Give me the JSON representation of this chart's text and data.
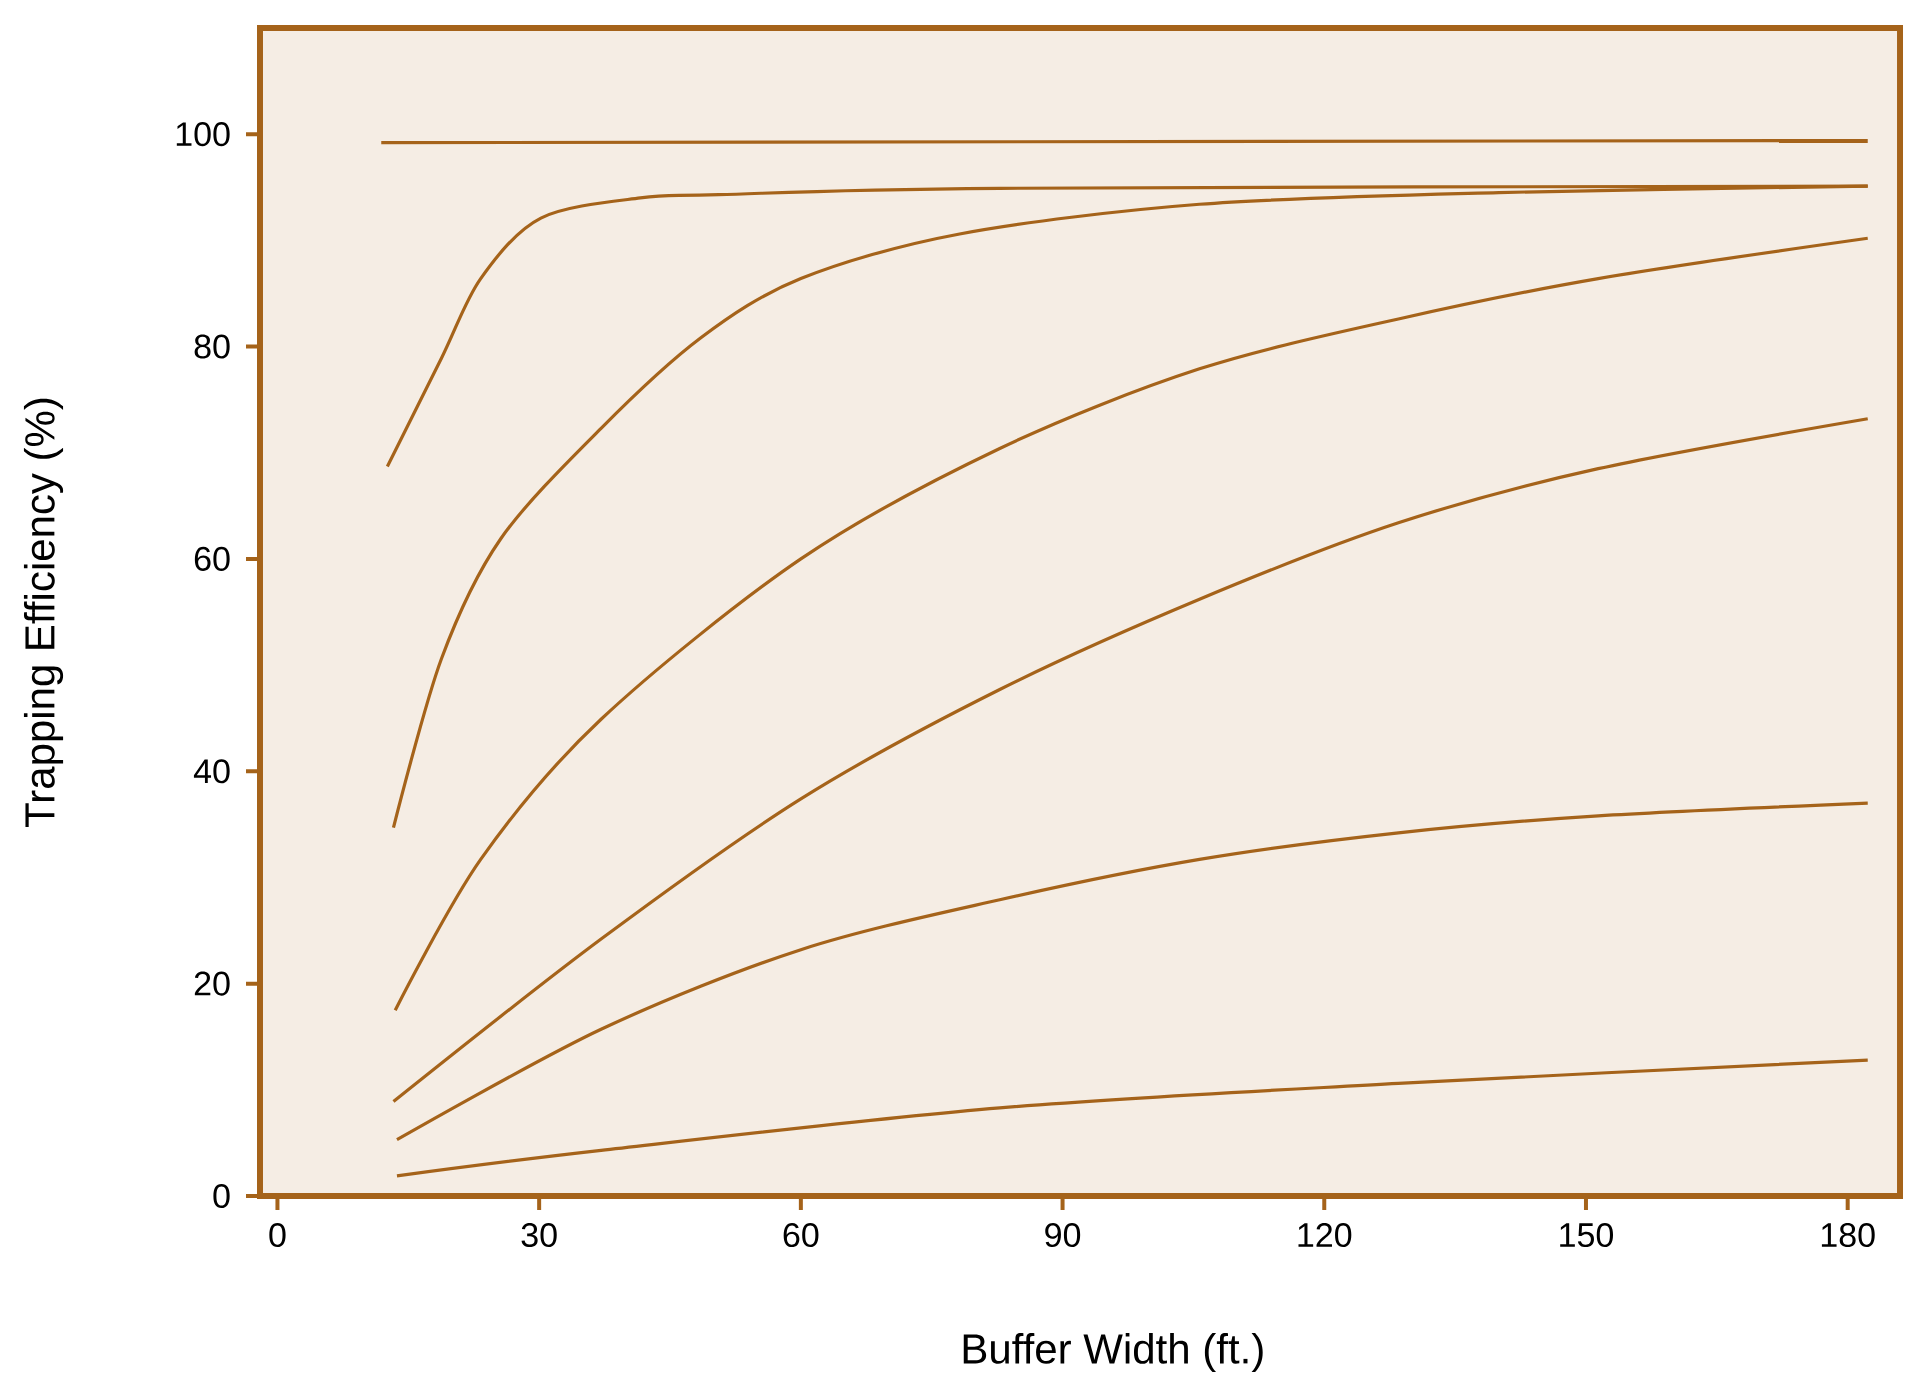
{
  "chart_data": {
    "type": "line",
    "xlabel": "Buffer Width (ft.)",
    "ylabel": "Trapping Efficiency (%)",
    "xlim": [
      -2,
      186
    ],
    "ylim": [
      0,
      110
    ],
    "xticks": [
      0,
      30,
      60,
      90,
      120,
      150,
      180
    ],
    "yticks": [
      0,
      20,
      40,
      60,
      80,
      100
    ],
    "grid": false,
    "marker": "none",
    "line_style": "solid",
    "series": [
      {
        "color": "#a5631a",
        "x": [
          11.9,
          182.3
        ],
        "values": [
          99.2,
          99.4
        ]
      },
      {
        "color": "#a5631a",
        "x": [
          12.6,
          18.8,
          23.3,
          30.2,
          41.6,
          50.6,
          82.8,
          182.3
        ],
        "values": [
          68.7,
          78.9,
          86.4,
          92.1,
          94.0,
          94.3,
          94.9,
          95.1
        ]
      },
      {
        "color": "#a5631a",
        "x": [
          13.3,
          18.8,
          25.6,
          37.1,
          48.5,
          60.0,
          78.2,
          105.7,
          140.0,
          182.3
        ],
        "values": [
          34.7,
          50.6,
          61.9,
          72.3,
          80.8,
          86.4,
          90.6,
          93.4,
          94.5,
          95.1
        ]
      },
      {
        "color": "#a5631a",
        "x": [
          13.5,
          23.3,
          37.1,
          60.0,
          82.8,
          105.7,
          128.5,
          151.4,
          182.3
        ],
        "values": [
          17.5,
          31.7,
          44.9,
          60.0,
          70.4,
          77.9,
          82.6,
          86.4,
          90.2
        ]
      },
      {
        "color": "#a5631a",
        "x": [
          13.3,
          37.1,
          60.0,
          82.8,
          105.7,
          128.5,
          151.4,
          182.3
        ],
        "values": [
          8.9,
          24.2,
          37.4,
          47.7,
          56.2,
          63.4,
          68.5,
          73.2
        ]
      },
      {
        "color": "#a5631a",
        "x": [
          13.7,
          37.1,
          60.0,
          82.8,
          105.7,
          128.5,
          151.4,
          182.3
        ],
        "values": [
          5.3,
          15.7,
          23.2,
          27.9,
          31.7,
          34.2,
          35.8,
          37.0
        ]
      },
      {
        "color": "#a5631a",
        "x": [
          13.7,
          37.1,
          82.8,
          128.5,
          182.3
        ],
        "values": [
          1.9,
          4.3,
          8.3,
          10.6,
          12.8
        ]
      }
    ]
  }
}
